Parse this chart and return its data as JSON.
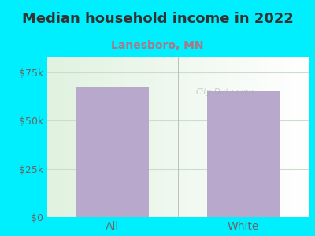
{
  "title": "Median household income in 2022",
  "subtitle": "Lanesboro, MN",
  "categories": [
    "All",
    "White"
  ],
  "values": [
    67000,
    65000
  ],
  "bar_color": "#b8a8cc",
  "background_outer": "#00efff",
  "background_inner": "#e8f5e9",
  "ylim": [
    0,
    83000
  ],
  "yticks": [
    0,
    25000,
    50000,
    75000
  ],
  "ytick_labels": [
    "$0",
    "$25k",
    "$50k",
    "$75k"
  ],
  "title_fontsize": 13,
  "subtitle_fontsize": 10,
  "tick_label_color": "#666666",
  "title_color": "#333333",
  "subtitle_color": "#aa7788",
  "watermark": "City-Data.com",
  "bar_width": 0.55,
  "grid_color": "#ccddcc",
  "axis_line_color": "#aaaaaa"
}
